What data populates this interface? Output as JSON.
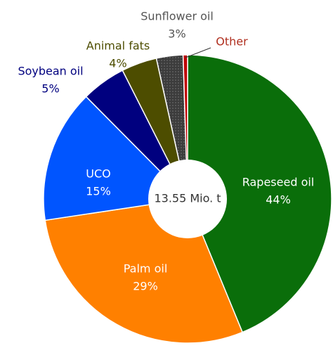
{
  "chart_data": {
    "type": "pie",
    "categories": [
      "Rapeseed oil",
      "Palm oil",
      "UCO",
      "Soybean oil",
      "Animal fats",
      "Sunflower oil",
      "Other"
    ],
    "values": [
      44,
      29,
      15,
      5,
      4,
      3,
      0.5
    ],
    "value_labels": [
      "44%",
      "29%",
      "15%",
      "5%",
      "4%",
      "3%",
      null
    ],
    "colors": [
      "#0a6e0a",
      "#ff8000",
      "#0055ff",
      "#00007f",
      "#4d4d00",
      "#3c3c3c",
      "#c00000"
    ],
    "center_label": "13.55 Mio. t"
  }
}
